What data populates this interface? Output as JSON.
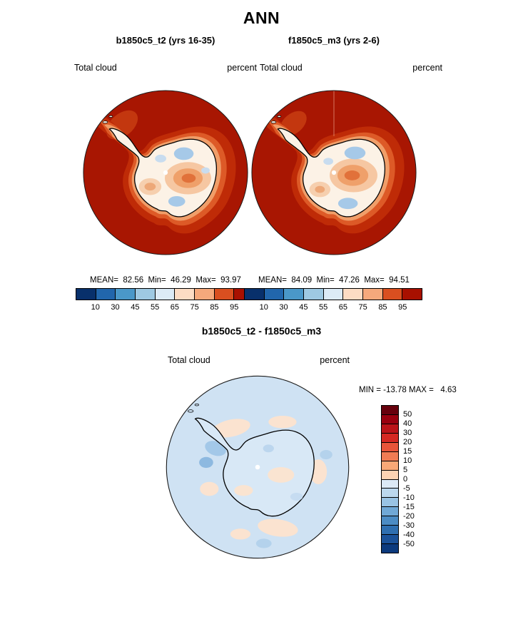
{
  "page": {
    "title": "ANN"
  },
  "panels": {
    "left": {
      "title": "b1850c5_t2 (yrs 16-35)",
      "field": "Total cloud",
      "units": "percent",
      "stats": "MEAN=  82.56  Min=  46.29  Max=  93.97"
    },
    "right": {
      "title": "f1850c5_m3 (yrs 2-6)",
      "field": "Total cloud",
      "units": "percent",
      "stats": "MEAN=  84.09  Min=  47.26  Max=  94.51"
    },
    "diff": {
      "title": "b1850c5_t2 - f1850c5_m3",
      "field": "Total cloud",
      "units": "percent",
      "minmax": "MIN = -13.78 MAX =   4.63"
    }
  },
  "chart_data": [
    {
      "type": "heatmap",
      "subtype": "south_polar_stereographic_contour_map",
      "region": "Antarctica / Southern Ocean polar view",
      "title": "b1850c5_t2 (yrs 16-35)",
      "variable": "Total cloud",
      "units": "percent",
      "stats": {
        "mean": 82.56,
        "min": 46.29,
        "max": 93.97
      },
      "contour_levels": [
        10,
        30,
        45,
        55,
        65,
        75,
        85,
        95
      ],
      "colorbar": {
        "orientation": "horizontal",
        "tick_labels": [
          "10",
          "30",
          "45",
          "55",
          "65",
          "75",
          "85",
          "95"
        ],
        "colors": [
          "#08306b",
          "#2166ac",
          "#4a98c9",
          "#9ec9e2",
          "#dcebf6",
          "#fcdcc4",
          "#f5a97c",
          "#d94f20",
          "#a81000"
        ]
      },
      "visual_summary": "Surrounding ocean mostly 85-95+ percent (dark red); Antarctic interior 45-75 percent (cream to orange) with scattered blue patches near 45-55 percent"
    },
    {
      "type": "heatmap",
      "subtype": "south_polar_stereographic_contour_map",
      "region": "Antarctica / Southern Ocean polar view",
      "title": "f1850c5_m3 (yrs 2-6)",
      "variable": "Total cloud",
      "units": "percent",
      "stats": {
        "mean": 84.09,
        "min": 47.26,
        "max": 94.51
      },
      "contour_levels": [
        10,
        30,
        45,
        55,
        65,
        75,
        85,
        95
      ],
      "colorbar": {
        "orientation": "horizontal",
        "tick_labels": [
          "10",
          "30",
          "45",
          "55",
          "65",
          "75",
          "85",
          "95"
        ],
        "colors": [
          "#08306b",
          "#2166ac",
          "#4a98c9",
          "#9ec9e2",
          "#dcebf6",
          "#fcdcc4",
          "#f5a97c",
          "#d94f20",
          "#a81000"
        ]
      },
      "visual_summary": "Surrounding ocean mostly 85-95+ percent (dark red); Antarctic interior 45-75 percent (cream to orange) with scattered blue patches near 45-55 percent"
    },
    {
      "type": "heatmap",
      "subtype": "south_polar_stereographic_difference_map",
      "region": "Antarctica / Southern Ocean polar view",
      "title": "b1850c5_t2 - f1850c5_m3",
      "variable": "Total cloud",
      "units": "percent",
      "stats": {
        "min": -13.78,
        "max": 4.63
      },
      "colorbar": {
        "orientation": "vertical",
        "tick_labels": [
          "50",
          "40",
          "30",
          "20",
          "15",
          "10",
          "5",
          "0",
          "-5",
          "-10",
          "-15",
          "-20",
          "-30",
          "-40",
          "-50"
        ],
        "colors": [
          "#67000d",
          "#99000f",
          "#bb1419",
          "#d42822",
          "#e8553a",
          "#f07c54",
          "#f8a877",
          "#fcd3b3",
          "#dce9f6",
          "#bcd8ee",
          "#99c3e4",
          "#70a8d6",
          "#4c8cc4",
          "#2f6fb0",
          "#1b5299",
          "#0c3a7d"
        ]
      },
      "visual_summary": "Mostly light blue (0 to -5 percent difference) with faint peach patches (0 to +5) and a few deeper blue spots (-5 to -15) near the Antarctic Peninsula"
    }
  ]
}
